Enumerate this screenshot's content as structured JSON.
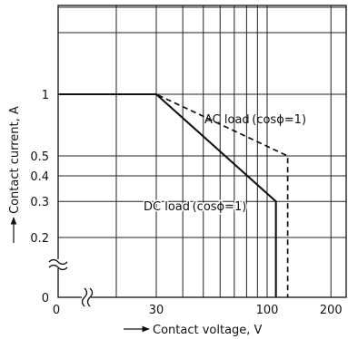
{
  "chart_data": {
    "type": "line",
    "title": "",
    "xlabel": "Contact voltage, V",
    "ylabel": "Contact current, A",
    "x_scale": "log",
    "y_scale": "log",
    "xlim": [
      20,
      250
    ],
    "ylim": [
      0.1,
      3
    ],
    "grid": true,
    "x_ticks": [
      {
        "value": 0,
        "label": "0"
      },
      {
        "value": 30,
        "label": "30"
      },
      {
        "value": 100,
        "label": "100"
      },
      {
        "value": 200,
        "label": "200"
      }
    ],
    "y_ticks": [
      {
        "value": 0,
        "label": "0"
      },
      {
        "value": 0.2,
        "label": "0.2"
      },
      {
        "value": 0.3,
        "label": "0.3"
      },
      {
        "value": 0.4,
        "label": "0.4"
      },
      {
        "value": 0.5,
        "label": "0.5"
      },
      {
        "value": 1,
        "label": "1"
      }
    ],
    "x_gridlines": [
      30,
      40,
      50,
      60,
      70,
      80,
      90,
      100,
      200
    ],
    "y_gridlines": [
      0.2,
      0.3,
      0.4,
      0.5,
      1,
      2
    ],
    "axis_breaks": true,
    "series": [
      {
        "name": "DC load (cosφ=1)",
        "style": "solid",
        "points": [
          [
            0,
            1
          ],
          [
            30,
            1
          ],
          [
            110,
            0.3
          ],
          [
            110,
            0
          ]
        ]
      },
      {
        "name": "AC load (cosφ=1)",
        "style": "dashed",
        "points": [
          [
            0,
            1
          ],
          [
            30,
            1
          ],
          [
            125,
            0.5
          ],
          [
            125,
            0
          ]
        ]
      }
    ],
    "annotations": [
      {
        "text": "AC load (cosϕ=1)",
        "x": 120,
        "y": 0.8
      },
      {
        "text": "DC load (cosϕ=1)",
        "x": 42,
        "y": 0.3
      }
    ]
  }
}
